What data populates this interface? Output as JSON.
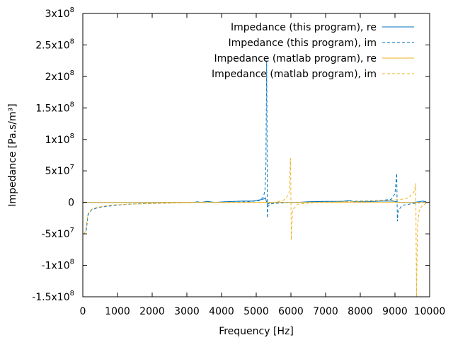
{
  "chart_data": {
    "type": "line",
    "title": "",
    "xlabel": "Frequency [Hz]",
    "ylabel": "Impedance [Pa.s/m³]",
    "xlim": [
      0,
      10000
    ],
    "ylim": [
      -150000000,
      300000000
    ],
    "x_ticks": [
      "0",
      "1000",
      "2000",
      "3000",
      "4000",
      "5000",
      "6000",
      "7000",
      "8000",
      "9000",
      "10000"
    ],
    "x_tick_values": [
      0,
      1000,
      2000,
      3000,
      4000,
      5000,
      6000,
      7000,
      8000,
      9000,
      10000
    ],
    "y_ticks": [
      {
        "value": -150000000,
        "mant": "-1.5x10",
        "exp": "8"
      },
      {
        "value": -100000000,
        "mant": "-1x10",
        "exp": "8"
      },
      {
        "value": -50000000,
        "mant": "-5x10",
        "exp": "7"
      },
      {
        "value": 0,
        "mant": "0",
        "exp": ""
      },
      {
        "value": 50000000,
        "mant": "5x10",
        "exp": "7"
      },
      {
        "value": 100000000,
        "mant": "1x10",
        "exp": "8"
      },
      {
        "value": 150000000,
        "mant": "1.5x10",
        "exp": "8"
      },
      {
        "value": 200000000,
        "mant": "2x10",
        "exp": "8"
      },
      {
        "value": 250000000,
        "mant": "2.5x10",
        "exp": "8"
      },
      {
        "value": 300000000,
        "mant": "3x10",
        "exp": "8"
      }
    ],
    "grid": false,
    "legend_position": "top-right",
    "series": [
      {
        "name": "Impedance (this program), re",
        "color": "#0072bd",
        "dash": false,
        "points": [
          [
            0,
            0
          ],
          [
            3200,
            0
          ],
          [
            3300,
            1000000
          ],
          [
            3400,
            0
          ],
          [
            3600,
            1500000
          ],
          [
            3800,
            0
          ],
          [
            4100,
            1000000
          ],
          [
            4600,
            2000000
          ],
          [
            4900,
            2000000
          ],
          [
            5100,
            4000000
          ],
          [
            5200,
            5000000
          ],
          [
            5270,
            7000000
          ],
          [
            5300,
            0
          ],
          [
            5340,
            -3000000
          ],
          [
            5400,
            0
          ],
          [
            6200,
            0
          ],
          [
            6500,
            1000000
          ],
          [
            7000,
            1500000
          ],
          [
            7500,
            1500000
          ],
          [
            7700,
            3000000
          ],
          [
            7800,
            1000000
          ],
          [
            8200,
            1000000
          ],
          [
            8600,
            2000000
          ],
          [
            8900,
            2000000
          ],
          [
            9000,
            1500000
          ],
          [
            9100,
            0
          ],
          [
            9500,
            0
          ],
          [
            9700,
            1000000
          ],
          [
            9800,
            2000000
          ],
          [
            9900,
            1000000
          ]
        ]
      },
      {
        "name": "Impedance (this program), im",
        "color": "#0072bd",
        "dash": true,
        "points": [
          [
            100,
            -45000000
          ],
          [
            150,
            -20000000
          ],
          [
            250,
            -12000000
          ],
          [
            400,
            -9000000
          ],
          [
            600,
            -7000000
          ],
          [
            900,
            -5000000
          ],
          [
            1300,
            -3000000
          ],
          [
            1800,
            -2000000
          ],
          [
            2500,
            -1000000
          ],
          [
            3200,
            0
          ],
          [
            4200,
            0
          ],
          [
            4800,
            1000000
          ],
          [
            5100,
            3000000
          ],
          [
            5200,
            8000000
          ],
          [
            5250,
            18000000
          ],
          [
            5280,
            60000000
          ],
          [
            5300,
            225000000
          ],
          [
            5310,
            140000000
          ],
          [
            5320,
            -25000000
          ],
          [
            5340,
            -6000000
          ],
          [
            5450,
            -2000000
          ],
          [
            6000,
            0
          ],
          [
            7000,
            1000000
          ],
          [
            8000,
            2000000
          ],
          [
            8600,
            3000000
          ],
          [
            8900,
            5000000
          ],
          [
            9000,
            14000000
          ],
          [
            9050,
            46000000
          ],
          [
            9070,
            -30000000
          ],
          [
            9090,
            -14000000
          ],
          [
            9200,
            -5000000
          ],
          [
            9500,
            -2000000
          ],
          [
            9800,
            0
          ],
          [
            9900,
            2000000
          ]
        ]
      },
      {
        "name": "Impedance (matlab program), re",
        "color": "#edb120",
        "dash": false,
        "points": [
          [
            0,
            0
          ],
          [
            9900,
            0
          ]
        ]
      },
      {
        "name": "Impedance (matlab program), im",
        "color": "#edb120",
        "dash": true,
        "points": [
          [
            40,
            -50000000
          ],
          [
            80,
            -45000000
          ],
          [
            150,
            -18000000
          ],
          [
            250,
            -11000000
          ],
          [
            400,
            -8000000
          ],
          [
            600,
            -6000000
          ],
          [
            900,
            -4000000
          ],
          [
            1300,
            -3000000
          ],
          [
            1800,
            -2000000
          ],
          [
            2600,
            -1000000
          ],
          [
            3500,
            0
          ],
          [
            4800,
            0
          ],
          [
            5500,
            0
          ],
          [
            5700,
            2000000
          ],
          [
            5850,
            5000000
          ],
          [
            5950,
            16000000
          ],
          [
            5990,
            70000000
          ],
          [
            6010,
            -60000000
          ],
          [
            6050,
            -12000000
          ],
          [
            6200,
            -3000000
          ],
          [
            6700,
            0
          ],
          [
            7500,
            1000000
          ],
          [
            8200,
            2000000
          ],
          [
            8800,
            3000000
          ],
          [
            9200,
            5000000
          ],
          [
            9400,
            7000000
          ],
          [
            9550,
            17000000
          ],
          [
            9600,
            30000000
          ],
          [
            9620,
            -150000000
          ],
          [
            9650,
            -40000000
          ],
          [
            9700,
            -12000000
          ],
          [
            9800,
            -4000000
          ],
          [
            9900,
            -2000000
          ]
        ]
      }
    ]
  }
}
